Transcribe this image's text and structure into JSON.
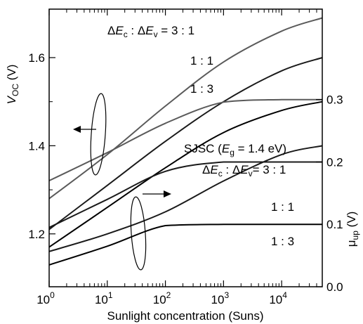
{
  "chart_data": {
    "type": "line",
    "xscale": "log",
    "xlim": [
      1,
      50000
    ],
    "xlabel": "Sunlight concentration (Suns)",
    "x_ticks": [
      1,
      10,
      100,
      1000,
      10000
    ],
    "x_tick_labels": [
      {
        "base": "10",
        "exp": "0"
      },
      {
        "base": "10",
        "exp": "1"
      },
      {
        "base": "10",
        "exp": "2"
      },
      {
        "base": "10",
        "exp": "3"
      },
      {
        "base": "10",
        "exp": "4"
      }
    ],
    "left_axis": {
      "label_main": "V",
      "label_sub": "OC",
      "label_unit": " (V)",
      "ylim": [
        1.08,
        1.71
      ],
      "ticks": [
        1.2,
        1.4,
        1.6
      ],
      "tick_labels": [
        "1.2",
        "1.4",
        "1.6"
      ]
    },
    "right_axis": {
      "label_main": "μ",
      "label_sub": "up",
      "label_unit": " (V)",
      "ylim": [
        0.0,
        0.445
      ],
      "ticks": [
        0.0,
        0.1,
        0.2,
        0.3
      ],
      "tick_labels": [
        "0.0",
        "0.1",
        "0.2",
        "0.3"
      ]
    },
    "series": [
      {
        "axis": "left",
        "color": "#5a5a5a",
        "x": [
          1,
          10,
          100,
          1000,
          10000,
          50000
        ],
        "y": [
          1.28,
          1.38,
          1.49,
          1.59,
          1.66,
          1.69
        ]
      },
      {
        "axis": "left",
        "color": "#1a1a1a",
        "x": [
          1,
          10,
          100,
          1000,
          10000,
          50000
        ],
        "y": [
          1.21,
          1.31,
          1.41,
          1.5,
          1.57,
          1.6
        ]
      },
      {
        "axis": "left",
        "color": "#000000",
        "x": [
          1,
          10,
          100,
          1000,
          10000,
          50000
        ],
        "y": [
          1.17,
          1.26,
          1.35,
          1.43,
          1.48,
          1.5
        ]
      },
      {
        "axis": "left",
        "color": "#1a1a1a",
        "x": [
          1,
          10,
          100,
          1000,
          10000,
          50000
        ],
        "y": [
          1.16,
          1.2,
          1.25,
          1.32,
          1.38,
          1.4
        ]
      },
      {
        "axis": "right",
        "color": "#5a5a5a",
        "x": [
          1,
          10,
          100,
          1000,
          10000,
          50000
        ],
        "y": [
          0.17,
          0.215,
          0.262,
          0.296,
          0.3,
          0.3
        ]
      },
      {
        "axis": "right",
        "color": "#1a1a1a",
        "x": [
          1,
          10,
          100,
          1000,
          10000,
          50000
        ],
        "y": [
          0.095,
          0.14,
          0.185,
          0.2,
          0.2,
          0.2
        ]
      },
      {
        "axis": "right",
        "color": "#000000",
        "x": [
          1,
          10,
          100,
          1000,
          10000,
          50000
        ],
        "y": [
          0.035,
          0.065,
          0.098,
          0.1,
          0.1,
          0.1
        ]
      }
    ],
    "annotations": {
      "top_ratio": {
        "prefix_a": "Δ",
        "a_main": "E",
        "a_sub": "c",
        "sep": " : ",
        "prefix_b": "Δ",
        "b_main": "E",
        "b_sub": "v",
        "value": " = 3 : 1"
      },
      "mid_11": "1 : 1",
      "mid_13": "1 : 3",
      "sjsc": {
        "prefix": "SJSC (",
        "main": "E",
        "sub": "g",
        "suffix": " = 1.4 eV)"
      },
      "bottom_ratio": {
        "prefix_a": "Δ",
        "a_main": "E",
        "a_sub": "c",
        "sep": " : ",
        "prefix_b": "Δ",
        "b_main": "E",
        "b_sub": "v",
        "value": "= 3 : 1"
      },
      "low_11": "1 : 1",
      "low_13": "1 : 3"
    },
    "grid": false
  }
}
